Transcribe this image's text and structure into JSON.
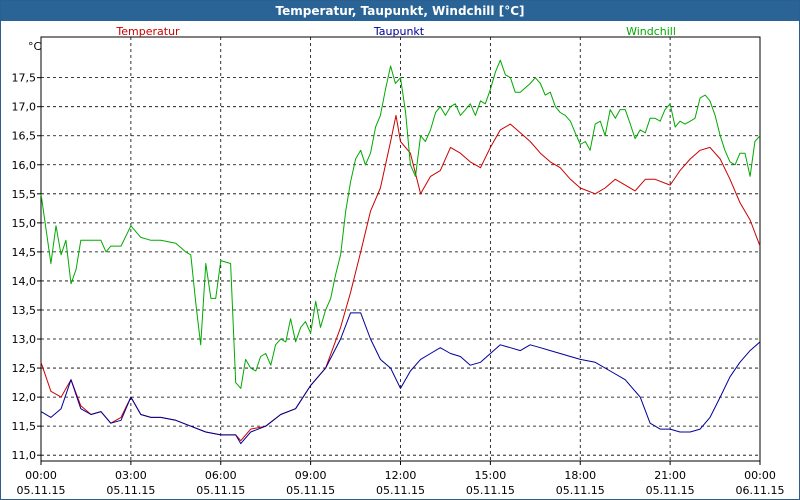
{
  "chart_data": {
    "type": "line",
    "title": "Temperatur, Taupunkt, Windchill [°C]",
    "ylabel": "°C",
    "xlabel": "",
    "ylim": [
      10.9,
      18.2
    ],
    "xlim": [
      0,
      24
    ],
    "grid": true,
    "legend_placement": "top",
    "y_ticks": [
      "11,0",
      "11,5",
      "12,0",
      "12,5",
      "13,0",
      "13,5",
      "14,0",
      "14,5",
      "15,0",
      "15,5",
      "16,0",
      "16,5",
      "17,0",
      "17,5"
    ],
    "x_tick_labels": [
      {
        "time": "00:00",
        "date": "05.11.15"
      },
      {
        "time": "03:00",
        "date": "05.11.15"
      },
      {
        "time": "06:00",
        "date": "05.11.15"
      },
      {
        "time": "09:00",
        "date": "05.11.15"
      },
      {
        "time": "12:00",
        "date": "05.11.15"
      },
      {
        "time": "15:00",
        "date": "05.11.15"
      },
      {
        "time": "18:00",
        "date": "05.11.15"
      },
      {
        "time": "21:00",
        "date": "05.11.15"
      },
      {
        "time": "00:00",
        "date": "06.11.15"
      }
    ],
    "series": [
      {
        "name": "Temperatur",
        "color": "#cc0000",
        "points": [
          [
            0,
            12.6
          ],
          [
            0.33,
            12.1
          ],
          [
            0.67,
            12.0
          ],
          [
            1.0,
            12.3
          ],
          [
            1.33,
            11.85
          ],
          [
            1.67,
            11.7
          ],
          [
            2.0,
            11.75
          ],
          [
            2.33,
            11.55
          ],
          [
            2.67,
            11.65
          ],
          [
            3.0,
            12.0
          ],
          [
            3.33,
            11.7
          ],
          [
            3.67,
            11.65
          ],
          [
            4.0,
            11.65
          ],
          [
            4.5,
            11.6
          ],
          [
            5.0,
            11.5
          ],
          [
            5.5,
            11.4
          ],
          [
            6.0,
            11.35
          ],
          [
            6.5,
            11.35
          ],
          [
            6.67,
            11.25
          ],
          [
            7.0,
            11.45
          ],
          [
            7.5,
            11.5
          ],
          [
            8.0,
            11.7
          ],
          [
            8.5,
            11.8
          ],
          [
            9.0,
            12.2
          ],
          [
            9.5,
            12.5
          ],
          [
            10.0,
            13.2
          ],
          [
            10.33,
            13.8
          ],
          [
            10.67,
            14.5
          ],
          [
            11.0,
            15.2
          ],
          [
            11.33,
            15.6
          ],
          [
            11.67,
            16.4
          ],
          [
            11.85,
            16.85
          ],
          [
            12.0,
            16.4
          ],
          [
            12.33,
            16.2
          ],
          [
            12.67,
            15.5
          ],
          [
            13.0,
            15.8
          ],
          [
            13.33,
            15.9
          ],
          [
            13.67,
            16.3
          ],
          [
            14.0,
            16.2
          ],
          [
            14.33,
            16.05
          ],
          [
            14.67,
            15.95
          ],
          [
            15.0,
            16.3
          ],
          [
            15.33,
            16.6
          ],
          [
            15.67,
            16.7
          ],
          [
            16.0,
            16.55
          ],
          [
            16.33,
            16.4
          ],
          [
            16.67,
            16.2
          ],
          [
            17.0,
            16.05
          ],
          [
            17.33,
            15.95
          ],
          [
            17.67,
            15.75
          ],
          [
            18.0,
            15.6
          ],
          [
            18.5,
            15.5
          ],
          [
            18.83,
            15.6
          ],
          [
            19.17,
            15.75
          ],
          [
            19.5,
            15.65
          ],
          [
            19.83,
            15.55
          ],
          [
            20.17,
            15.75
          ],
          [
            20.5,
            15.75
          ],
          [
            21.0,
            15.65
          ],
          [
            21.33,
            15.9
          ],
          [
            21.67,
            16.1
          ],
          [
            22.0,
            16.25
          ],
          [
            22.33,
            16.3
          ],
          [
            22.67,
            16.1
          ],
          [
            23.0,
            15.75
          ],
          [
            23.33,
            15.35
          ],
          [
            23.67,
            15.05
          ],
          [
            24.0,
            14.6
          ]
        ]
      },
      {
        "name": "Taupunkt",
        "color": "#000099",
        "points": [
          [
            0,
            11.75
          ],
          [
            0.33,
            11.65
          ],
          [
            0.67,
            11.8
          ],
          [
            1.0,
            12.3
          ],
          [
            1.33,
            11.8
          ],
          [
            1.67,
            11.7
          ],
          [
            2.0,
            11.75
          ],
          [
            2.33,
            11.55
          ],
          [
            2.67,
            11.6
          ],
          [
            3.0,
            12.0
          ],
          [
            3.33,
            11.7
          ],
          [
            3.67,
            11.65
          ],
          [
            4.0,
            11.65
          ],
          [
            4.5,
            11.6
          ],
          [
            5.0,
            11.5
          ],
          [
            5.5,
            11.4
          ],
          [
            6.0,
            11.35
          ],
          [
            6.5,
            11.35
          ],
          [
            6.67,
            11.2
          ],
          [
            7.0,
            11.4
          ],
          [
            7.5,
            11.5
          ],
          [
            8.0,
            11.7
          ],
          [
            8.5,
            11.8
          ],
          [
            9.0,
            12.2
          ],
          [
            9.5,
            12.5
          ],
          [
            10.0,
            13.0
          ],
          [
            10.33,
            13.45
          ],
          [
            10.67,
            13.45
          ],
          [
            11.0,
            13.0
          ],
          [
            11.33,
            12.65
          ],
          [
            11.67,
            12.5
          ],
          [
            12.0,
            12.15
          ],
          [
            12.33,
            12.45
          ],
          [
            12.67,
            12.65
          ],
          [
            13.0,
            12.75
          ],
          [
            13.33,
            12.85
          ],
          [
            13.67,
            12.75
          ],
          [
            14.0,
            12.7
          ],
          [
            14.33,
            12.55
          ],
          [
            14.67,
            12.6
          ],
          [
            15.0,
            12.75
          ],
          [
            15.33,
            12.9
          ],
          [
            15.67,
            12.85
          ],
          [
            16.0,
            12.8
          ],
          [
            16.33,
            12.9
          ],
          [
            16.67,
            12.85
          ],
          [
            17.0,
            12.8
          ],
          [
            17.33,
            12.75
          ],
          [
            17.67,
            12.7
          ],
          [
            18.0,
            12.65
          ],
          [
            18.5,
            12.6
          ],
          [
            19.0,
            12.45
          ],
          [
            19.5,
            12.3
          ],
          [
            20.0,
            12.0
          ],
          [
            20.33,
            11.55
          ],
          [
            20.67,
            11.45
          ],
          [
            21.0,
            11.45
          ],
          [
            21.33,
            11.4
          ],
          [
            21.67,
            11.4
          ],
          [
            22.0,
            11.45
          ],
          [
            22.33,
            11.65
          ],
          [
            22.67,
            12.0
          ],
          [
            23.0,
            12.35
          ],
          [
            23.33,
            12.6
          ],
          [
            23.67,
            12.8
          ],
          [
            24.0,
            12.95
          ]
        ]
      },
      {
        "name": "Windchill",
        "color": "#00aa00",
        "points": [
          [
            0,
            15.5
          ],
          [
            0.33,
            14.3
          ],
          [
            0.5,
            14.95
          ],
          [
            0.67,
            14.45
          ],
          [
            0.83,
            14.7
          ],
          [
            1.0,
            13.95
          ],
          [
            1.17,
            14.2
          ],
          [
            1.33,
            14.7
          ],
          [
            1.67,
            14.7
          ],
          [
            2.0,
            14.7
          ],
          [
            2.17,
            14.5
          ],
          [
            2.33,
            14.6
          ],
          [
            2.67,
            14.6
          ],
          [
            3.0,
            14.95
          ],
          [
            3.33,
            14.75
          ],
          [
            3.67,
            14.7
          ],
          [
            4.0,
            14.7
          ],
          [
            4.5,
            14.65
          ],
          [
            4.83,
            14.5
          ],
          [
            5.0,
            14.45
          ],
          [
            5.17,
            13.6
          ],
          [
            5.33,
            12.9
          ],
          [
            5.5,
            14.3
          ],
          [
            5.67,
            13.7
          ],
          [
            5.83,
            13.7
          ],
          [
            6.0,
            14.35
          ],
          [
            6.33,
            14.3
          ],
          [
            6.5,
            12.25
          ],
          [
            6.67,
            12.15
          ],
          [
            6.83,
            12.65
          ],
          [
            7.0,
            12.5
          ],
          [
            7.17,
            12.45
          ],
          [
            7.33,
            12.7
          ],
          [
            7.5,
            12.75
          ],
          [
            7.67,
            12.55
          ],
          [
            7.83,
            12.9
          ],
          [
            8.0,
            13.0
          ],
          [
            8.17,
            12.95
          ],
          [
            8.33,
            13.35
          ],
          [
            8.5,
            12.95
          ],
          [
            8.67,
            13.2
          ],
          [
            8.83,
            13.3
          ],
          [
            9.0,
            13.1
          ],
          [
            9.17,
            13.65
          ],
          [
            9.33,
            13.2
          ],
          [
            9.5,
            13.5
          ],
          [
            9.67,
            13.7
          ],
          [
            9.83,
            14.1
          ],
          [
            10.0,
            14.45
          ],
          [
            10.17,
            15.2
          ],
          [
            10.33,
            15.7
          ],
          [
            10.5,
            16.1
          ],
          [
            10.67,
            16.25
          ],
          [
            10.83,
            16.0
          ],
          [
            11.0,
            16.2
          ],
          [
            11.17,
            16.65
          ],
          [
            11.33,
            16.85
          ],
          [
            11.5,
            17.3
          ],
          [
            11.67,
            17.7
          ],
          [
            11.83,
            17.4
          ],
          [
            12.0,
            17.5
          ],
          [
            12.17,
            16.9
          ],
          [
            12.33,
            16.0
          ],
          [
            12.5,
            15.8
          ],
          [
            12.67,
            16.5
          ],
          [
            12.83,
            16.4
          ],
          [
            13.0,
            16.6
          ],
          [
            13.17,
            16.9
          ],
          [
            13.33,
            17.0
          ],
          [
            13.5,
            16.85
          ],
          [
            13.67,
            17.0
          ],
          [
            13.83,
            17.05
          ],
          [
            14.0,
            16.85
          ],
          [
            14.17,
            16.95
          ],
          [
            14.33,
            17.05
          ],
          [
            14.5,
            16.85
          ],
          [
            14.67,
            17.1
          ],
          [
            14.83,
            17.05
          ],
          [
            15.0,
            17.3
          ],
          [
            15.17,
            17.6
          ],
          [
            15.33,
            17.8
          ],
          [
            15.5,
            17.55
          ],
          [
            15.67,
            17.5
          ],
          [
            15.83,
            17.25
          ],
          [
            16.0,
            17.25
          ],
          [
            16.33,
            17.4
          ],
          [
            16.5,
            17.5
          ],
          [
            16.67,
            17.4
          ],
          [
            16.83,
            17.2
          ],
          [
            17.0,
            17.25
          ],
          [
            17.17,
            17.0
          ],
          [
            17.33,
            16.9
          ],
          [
            17.5,
            16.85
          ],
          [
            17.67,
            16.75
          ],
          [
            17.83,
            16.55
          ],
          [
            18.0,
            16.35
          ],
          [
            18.17,
            16.4
          ],
          [
            18.33,
            16.25
          ],
          [
            18.5,
            16.7
          ],
          [
            18.67,
            16.75
          ],
          [
            18.83,
            16.5
          ],
          [
            19.0,
            16.95
          ],
          [
            19.17,
            16.8
          ],
          [
            19.33,
            16.95
          ],
          [
            19.5,
            16.95
          ],
          [
            19.67,
            16.7
          ],
          [
            19.83,
            16.45
          ],
          [
            20.0,
            16.6
          ],
          [
            20.17,
            16.55
          ],
          [
            20.33,
            16.8
          ],
          [
            20.5,
            16.8
          ],
          [
            20.67,
            16.75
          ],
          [
            20.83,
            16.95
          ],
          [
            21.0,
            17.05
          ],
          [
            21.17,
            16.65
          ],
          [
            21.33,
            16.75
          ],
          [
            21.5,
            16.7
          ],
          [
            21.67,
            16.75
          ],
          [
            21.83,
            16.8
          ],
          [
            22.0,
            17.15
          ],
          [
            22.17,
            17.2
          ],
          [
            22.33,
            17.1
          ],
          [
            22.5,
            16.85
          ],
          [
            22.67,
            16.5
          ],
          [
            22.83,
            16.25
          ],
          [
            23.0,
            16.05
          ],
          [
            23.17,
            16.0
          ],
          [
            23.33,
            16.2
          ],
          [
            23.5,
            16.2
          ],
          [
            23.67,
            15.8
          ],
          [
            23.83,
            16.4
          ],
          [
            24.0,
            16.5
          ]
        ]
      }
    ]
  }
}
